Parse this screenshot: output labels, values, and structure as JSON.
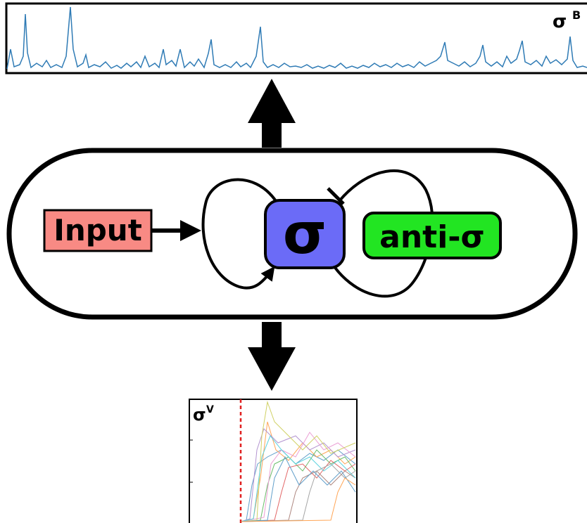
{
  "top_plot": {
    "label": {
      "symbol": "σ",
      "superscript": "B"
    }
  },
  "nodes": [
    {
      "label": "Input"
    },
    {
      "label": "σ"
    },
    {
      "label": "anti-σ"
    }
  ],
  "bottom_plot": {
    "label": {
      "symbol": "σ",
      "superscript": "V"
    }
  }
}
